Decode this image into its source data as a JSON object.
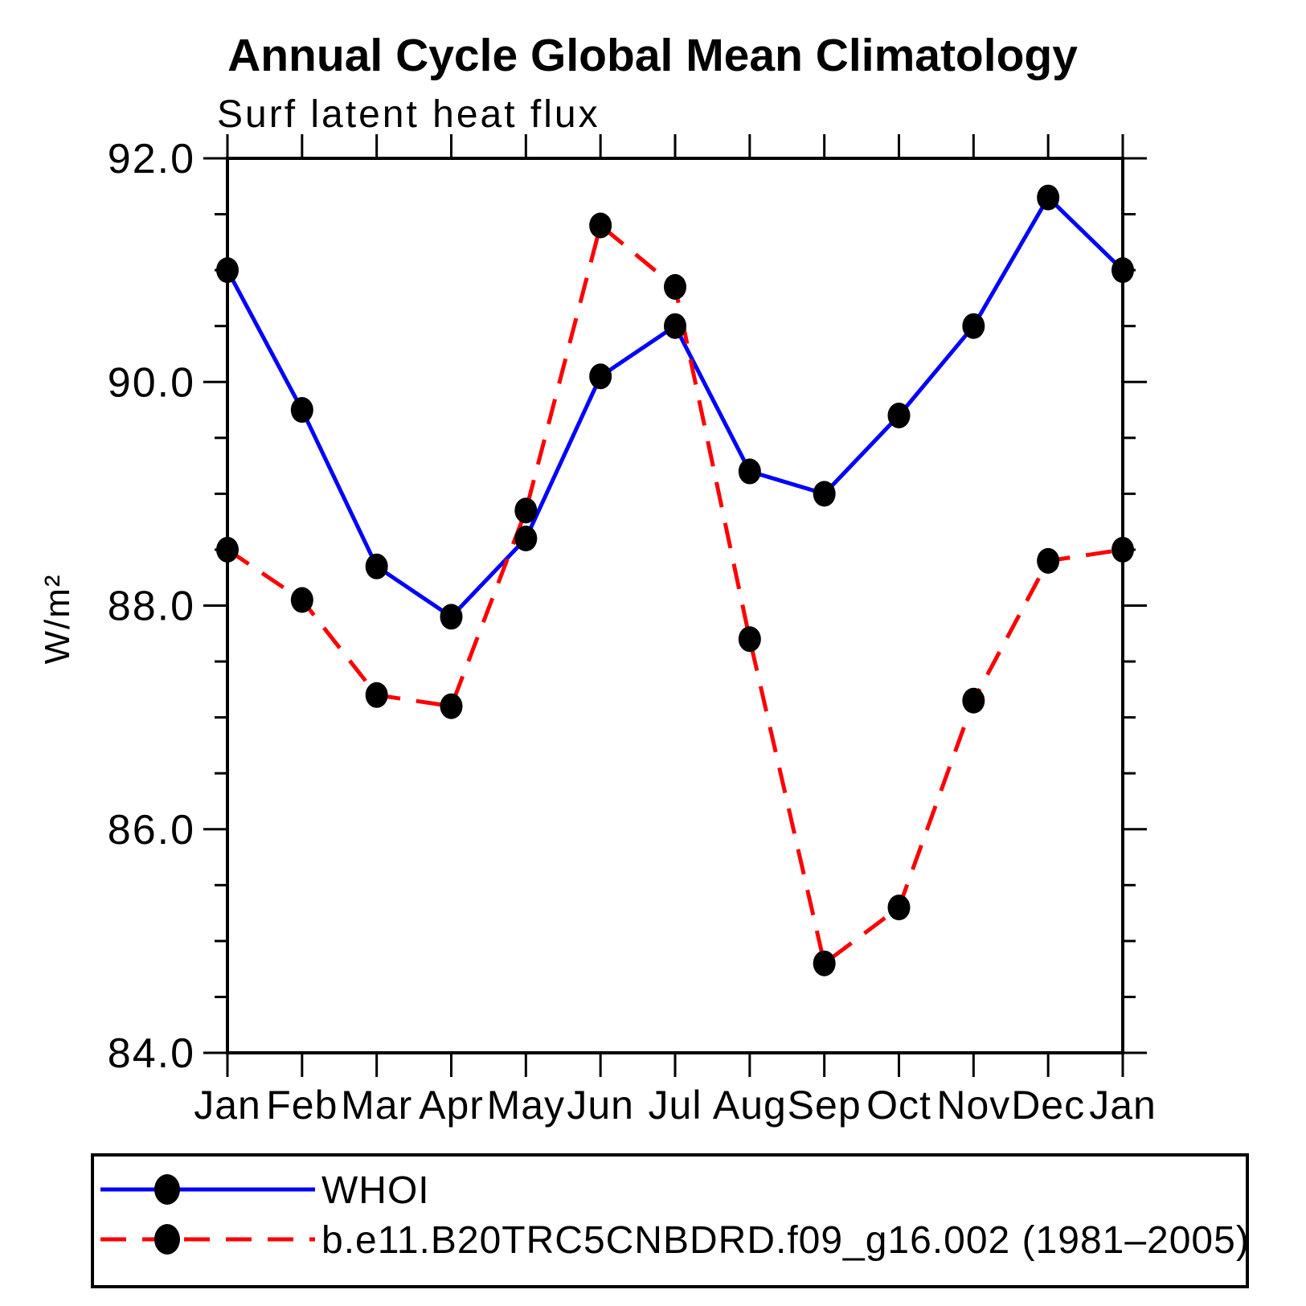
{
  "title": "Annual Cycle Global Mean Climatology",
  "chart_data": {
    "type": "line",
    "title": "Annual Cycle Global Mean Climatology",
    "subtitle": "Surf latent heat flux",
    "ylabel": "W/m²",
    "xlabel": "",
    "x_categories": [
      "Jan",
      "Feb",
      "Mar",
      "Apr",
      "May",
      "Jun",
      "Jul",
      "Aug",
      "Sep",
      "Oct",
      "Nov",
      "Dec",
      "Jan"
    ],
    "ylim": [
      84.0,
      92.0
    ],
    "y_major_ticks": [
      92.0,
      90.0,
      88.0,
      86.0,
      84.0
    ],
    "y_major_tick_labels": [
      "92.0",
      "90.0",
      "88.0",
      "86.0",
      "84.0"
    ],
    "y_minor_step": 0.5,
    "grid": "off",
    "legend_position": "bottom",
    "series": [
      {
        "name": "WHOI",
        "color": "#0000ff",
        "line_style": "solid",
        "marker": "filled-black-dot",
        "values": [
          91.0,
          89.75,
          88.35,
          87.9,
          88.6,
          90.05,
          90.5,
          89.2,
          89.0,
          89.7,
          90.5,
          91.65,
          91.0
        ]
      },
      {
        "name": "b.e11.B20TRC5CNBDRD.f09_g16.002 (1981–2005)",
        "color": "#ff0000",
        "line_style": "dashed",
        "marker": "filled-black-dot",
        "values": [
          88.5,
          88.05,
          87.2,
          87.1,
          88.85,
          91.4,
          90.85,
          87.7,
          84.8,
          85.3,
          87.15,
          88.4,
          88.5
        ]
      }
    ]
  },
  "colors": {
    "background": "#ffffff",
    "axis": "#000000",
    "marker": "#000000",
    "series_whoi": "#0000ff",
    "series_model": "#ff0000"
  }
}
